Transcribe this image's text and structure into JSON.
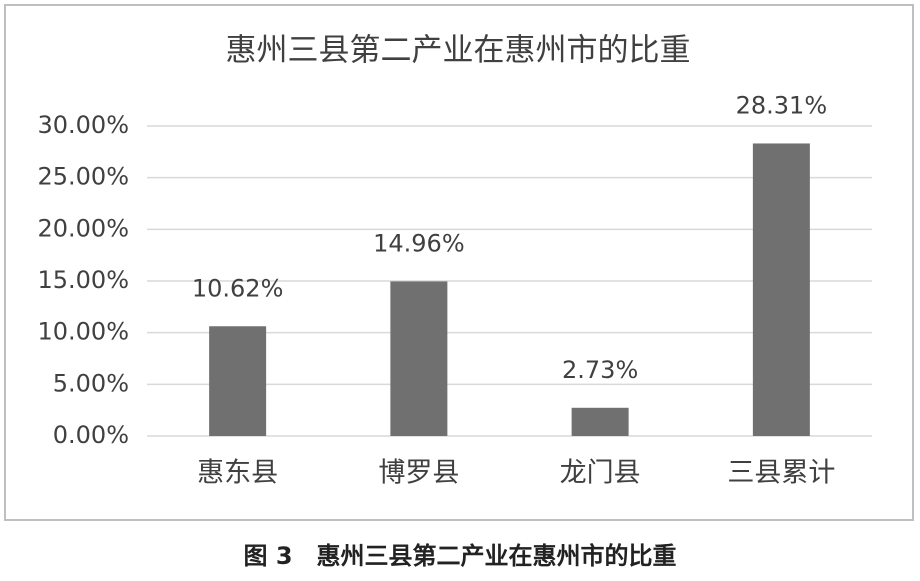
{
  "chart_data": {
    "type": "bar",
    "title": "惠州三县第二产业在惠州市的比重",
    "categories": [
      "惠东县",
      "博罗县",
      "龙门县",
      "三县累计"
    ],
    "values": [
      10.62,
      14.96,
      2.73,
      28.31
    ],
    "value_labels": [
      "10.62%",
      "14.96%",
      "2.73%",
      "28.31%"
    ],
    "color": "#707070",
    "ylim": [
      0,
      30
    ],
    "yticks": [
      {
        "value": 0,
        "label": "0.00%"
      },
      {
        "value": 5,
        "label": "5.00%"
      },
      {
        "value": 10,
        "label": "10.00%"
      },
      {
        "value": 15,
        "label": "15.00%"
      },
      {
        "value": 20,
        "label": "20.00%"
      },
      {
        "value": 25,
        "label": "25.00%"
      },
      {
        "value": 30,
        "label": "30.00%"
      }
    ],
    "grid": true
  },
  "caption": "图 3　惠州三县第二产业在惠州市的比重"
}
